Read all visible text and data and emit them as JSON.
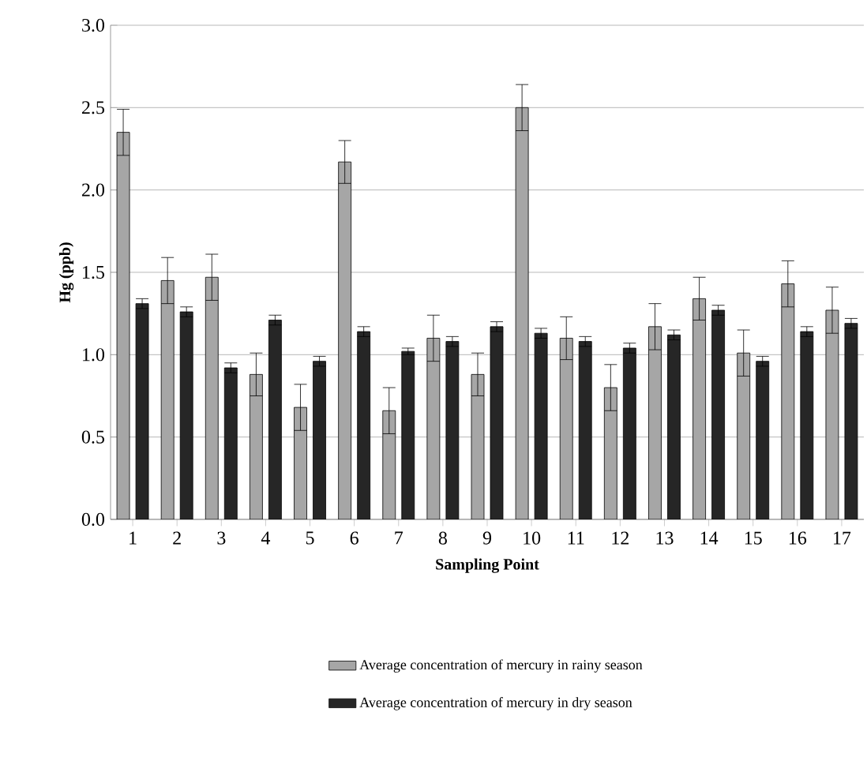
{
  "chart_data": {
    "type": "bar",
    "xlabel": "Sampling Point",
    "ylabel": "Hg (ppb)",
    "categories": [
      "1",
      "2",
      "3",
      "4",
      "5",
      "6",
      "7",
      "8",
      "9",
      "10",
      "11",
      "12",
      "13",
      "14",
      "15",
      "16",
      "17"
    ],
    "series": [
      {
        "name": "Average concentration of mercury in rainy season",
        "color": "#a6a6a6",
        "values": [
          2.35,
          1.45,
          1.47,
          0.88,
          0.68,
          2.17,
          0.66,
          1.1,
          0.88,
          2.5,
          1.1,
          0.8,
          1.17,
          1.34,
          1.01,
          1.43,
          1.27
        ],
        "errors": [
          0.14,
          0.14,
          0.14,
          0.13,
          0.14,
          0.13,
          0.14,
          0.14,
          0.13,
          0.14,
          0.13,
          0.14,
          0.14,
          0.13,
          0.14,
          0.14,
          0.14
        ]
      },
      {
        "name": "Average concentration of mercury in dry season",
        "color": "#262626",
        "values": [
          1.31,
          1.26,
          0.92,
          1.21,
          0.96,
          1.14,
          1.02,
          1.08,
          1.17,
          1.13,
          1.08,
          1.04,
          1.12,
          1.27,
          0.96,
          1.14,
          1.19
        ],
        "errors": [
          0.03,
          0.03,
          0.03,
          0.03,
          0.03,
          0.03,
          0.02,
          0.03,
          0.03,
          0.03,
          0.03,
          0.03,
          0.03,
          0.03,
          0.03,
          0.03,
          0.03
        ]
      }
    ],
    "ylim": [
      0,
      3
    ],
    "yticks": [
      {
        "value": 0,
        "label": "0.0"
      },
      {
        "value": 0.5,
        "label": "0.5"
      },
      {
        "value": 1,
        "label": "1.0"
      },
      {
        "value": 1.5,
        "label": "1.5"
      },
      {
        "value": 2,
        "label": "2.0"
      },
      {
        "value": 2.5,
        "label": "2.5"
      },
      {
        "value": 3,
        "label": "3.0"
      }
    ],
    "grid": "y",
    "legend": "bottom"
  }
}
